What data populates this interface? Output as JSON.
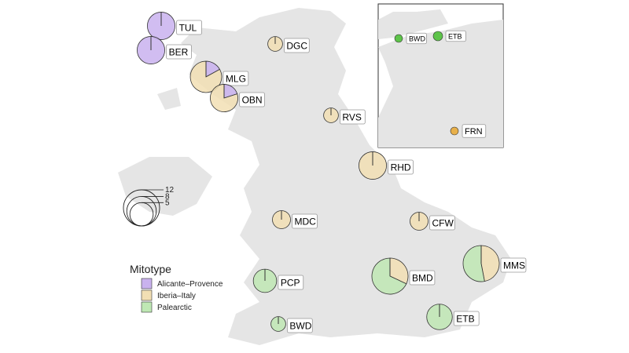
{
  "colors": {
    "land": "#e5e5e5",
    "Alicante-Provence": "#c9b2ee",
    "Iberia-Italy": "#f2dfb4",
    "Palearctic": "#bfe8b4",
    "inset_green": "#5ec44a",
    "inset_orange": "#e8b04a"
  },
  "legend": {
    "title": "Mitotype",
    "items": [
      {
        "label": "Alicante–Provence",
        "key": "Alicante-Provence"
      },
      {
        "label": "Iberia–Italy",
        "key": "Iberia-Italy"
      },
      {
        "label": "Palearctic",
        "key": "Palearctic"
      }
    ],
    "size_scale": [
      12,
      8,
      5
    ]
  },
  "sites": [
    {
      "label": "TUL",
      "n": 7,
      "fractions": {
        "Alicante-Provence": 1.0
      }
    },
    {
      "label": "BER",
      "n": 7,
      "fractions": {
        "Alicante-Provence": 1.0
      }
    },
    {
      "label": "DGC",
      "n": 2,
      "fractions": {
        "Iberia-Italy": 1.0
      }
    },
    {
      "label": "MLG",
      "n": 9,
      "fractions": {
        "Alicante-Provence": 0.17,
        "Iberia-Italy": 0.83
      }
    },
    {
      "label": "OBN",
      "n": 7,
      "fractions": {
        "Alicante-Provence": 0.2,
        "Iberia-Italy": 0.8
      }
    },
    {
      "label": "RVS",
      "n": 2,
      "fractions": {
        "Iberia-Italy": 1.0
      }
    },
    {
      "label": "RHD",
      "n": 7,
      "fractions": {
        "Iberia-Italy": 1.0
      }
    },
    {
      "label": "MDC",
      "n": 3,
      "fractions": {
        "Iberia-Italy": 1.0
      }
    },
    {
      "label": "CFW",
      "n": 3,
      "fractions": {
        "Iberia-Italy": 1.0
      }
    },
    {
      "label": "MMS",
      "n": 12,
      "fractions": {
        "Iberia-Italy": 0.47,
        "Palearctic": 0.53
      }
    },
    {
      "label": "BMD",
      "n": 12,
      "fractions": {
        "Iberia-Italy": 0.32,
        "Palearctic": 0.68
      }
    },
    {
      "label": "PCP",
      "n": 5,
      "fractions": {
        "Palearctic": 1.0
      }
    },
    {
      "label": "BWD",
      "n": 2,
      "fractions": {
        "Palearctic": 1.0
      }
    },
    {
      "label": "ETB",
      "n": 6,
      "fractions": {
        "Palearctic": 1.0
      }
    }
  ],
  "inset": {
    "sites": [
      {
        "label": "BWD",
        "mitotype": "Palearctic"
      },
      {
        "label": "ETB",
        "mitotype": "Palearctic"
      },
      {
        "label": "FRN",
        "mitotype": "Iberia-Italy"
      }
    ]
  }
}
